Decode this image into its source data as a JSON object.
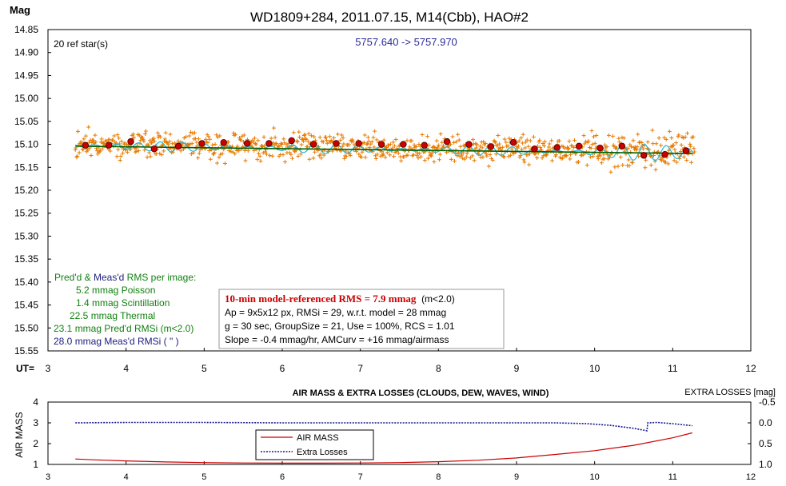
{
  "chart_data": [
    {
      "type": "scatter",
      "title": "WD1809+284, 2011.07.15, M14(Cbb), HAO#2",
      "ylabel": "Mag",
      "xlabel": "UT=",
      "xlim": [
        3,
        12
      ],
      "ylim": [
        15.55,
        14.85
      ],
      "y_inverted": true,
      "x_ticks": [
        "3",
        "4",
        "5",
        "6",
        "7",
        "8",
        "9",
        "10",
        "11",
        "12"
      ],
      "y_ticks": [
        "14.85",
        "14.90",
        "14.95",
        "15.00",
        "15.05",
        "15.10",
        "15.15",
        "15.20",
        "15.25",
        "15.30",
        "15.35",
        "15.40",
        "15.45",
        "15.50",
        "15.55"
      ],
      "grid": false,
      "ref_stars": "20 ref star(s)",
      "jd_range": "5757.640 -> 5757.970",
      "colors": {
        "points": "#e87a00",
        "group_means": "#cc0000",
        "running": "#20b8d8",
        "trend": "#006000",
        "green_text": "#108010",
        "blue_text": "#202080"
      },
      "group_means": {
        "x": [
          3.48,
          3.78,
          4.06,
          4.36,
          4.67,
          4.97,
          5.25,
          5.55,
          5.83,
          6.12,
          6.4,
          6.69,
          6.98,
          7.27,
          7.55,
          7.82,
          8.11,
          8.39,
          8.67,
          8.96,
          9.23,
          9.52,
          9.8,
          10.07,
          10.35,
          10.63,
          10.9,
          11.17
        ],
        "y": [
          15.102,
          15.102,
          15.094,
          15.11,
          15.104,
          15.098,
          15.096,
          15.098,
          15.098,
          15.092,
          15.1,
          15.098,
          15.098,
          15.1,
          15.1,
          15.102,
          15.094,
          15.1,
          15.105,
          15.096,
          15.11,
          15.107,
          15.104,
          15.108,
          15.104,
          15.124,
          15.122,
          15.114
        ]
      },
      "trend_line": {
        "x": [
          3.35,
          11.25
        ],
        "y": [
          15.104,
          15.12
        ]
      },
      "series": [
        {
          "name": "points",
          "x_range": [
            3.35,
            11.28
          ],
          "y_center": 15.1,
          "y_spread": 0.025
        }
      ],
      "stats_left": {
        "header_a": "Pred'd",
        "header_amp": "&",
        "header_b": "Meas'd",
        "header_c": "RMS per image:",
        "line1": "5.2 mmag Poisson",
        "line2": "1.4 mmag Scintillation",
        "line3": "22.5 mmag Thermal",
        "line4": "23.1 mmag Pred'd  RMSi (m<2.0)",
        "line5": "28.0 mmag Meas'd RMSi (    \"     )"
      },
      "stats_box": {
        "headline": "10-min model-referenced RMS = 7.9 mmag",
        "headline_suffix": "(m<2.0)",
        "line1": "Ap = 9x5x12 px, RMSi = 29, w.r.t. model = 28 mmag",
        "line2": "g = 30 sec, GroupSize = 21, Use = 100%, RCS = 1.01",
        "line3": "Slope = -0.4 mmag/hr, AMCurv = +16 mmag/airmass"
      }
    },
    {
      "type": "line",
      "title": "AIR MASS & EXTRA LOSSES (CLOUDS, DEW, WAVES, WIND)",
      "ylabel": "AIR MASS",
      "y2label": "EXTRA LOSSES [mag]",
      "xlim": [
        3,
        12
      ],
      "ylim": [
        1,
        4
      ],
      "y2lim": [
        1.0,
        -0.5
      ],
      "x_ticks": [
        "3",
        "4",
        "5",
        "6",
        "7",
        "8",
        "9",
        "10",
        "11",
        "12"
      ],
      "y_ticks": [
        "1",
        "2",
        "3",
        "4"
      ],
      "y2_ticks": [
        "-0.5",
        "0.0",
        "0.5",
        "1.0"
      ],
      "legend_position": "lower-left",
      "series": [
        {
          "name": "AIR MASS",
          "color": "#cc0000",
          "x": [
            3.35,
            3.6,
            4.0,
            4.5,
            5.0,
            5.5,
            6.0,
            6.5,
            7.0,
            7.5,
            8.0,
            8.5,
            9.0,
            9.5,
            10.0,
            10.5,
            11.0,
            11.25
          ],
          "y": [
            1.26,
            1.22,
            1.17,
            1.12,
            1.09,
            1.07,
            1.06,
            1.06,
            1.07,
            1.09,
            1.13,
            1.2,
            1.31,
            1.48,
            1.66,
            1.92,
            2.28,
            2.52
          ]
        },
        {
          "name": "Extra Losses",
          "color": "#1a1a90",
          "x": [
            3.35,
            4.0,
            5.0,
            6.0,
            7.0,
            8.0,
            9.0,
            9.5,
            9.9,
            10.2,
            10.5,
            10.67,
            10.68,
            10.8,
            11.0,
            11.25
          ],
          "y2": [
            0.0,
            -0.01,
            -0.01,
            0.0,
            0.0,
            0.0,
            0.0,
            0.0,
            0.02,
            0.06,
            0.13,
            0.19,
            0.0,
            -0.01,
            0.02,
            0.07
          ]
        }
      ]
    }
  ]
}
